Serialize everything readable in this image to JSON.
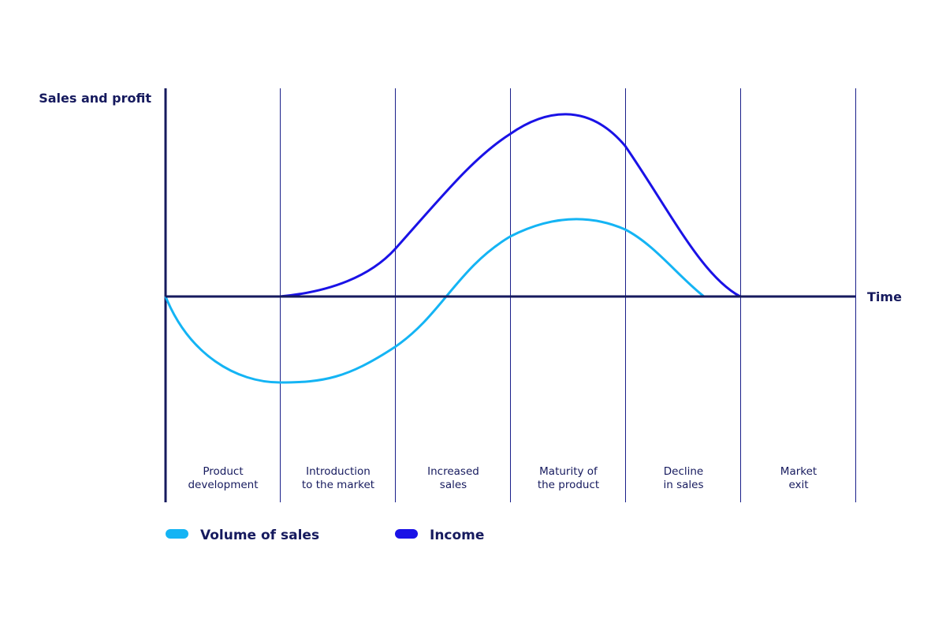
{
  "axes": {
    "y_label": "Sales and profit",
    "x_label": "Time"
  },
  "stages": [
    {
      "lines": [
        "Product",
        "development"
      ]
    },
    {
      "lines": [
        "Introduction",
        "to the market"
      ]
    },
    {
      "lines": [
        "Increased",
        "sales"
      ]
    },
    {
      "lines": [
        "Maturity of",
        "the product"
      ]
    },
    {
      "lines": [
        "Decline",
        "in sales"
      ]
    },
    {
      "lines": [
        "Market",
        "exit"
      ]
    }
  ],
  "legend": [
    {
      "label": "Volume of sales",
      "color": "#14b4f4"
    },
    {
      "label": "Income",
      "color": "#1a12e6"
    }
  ]
}
